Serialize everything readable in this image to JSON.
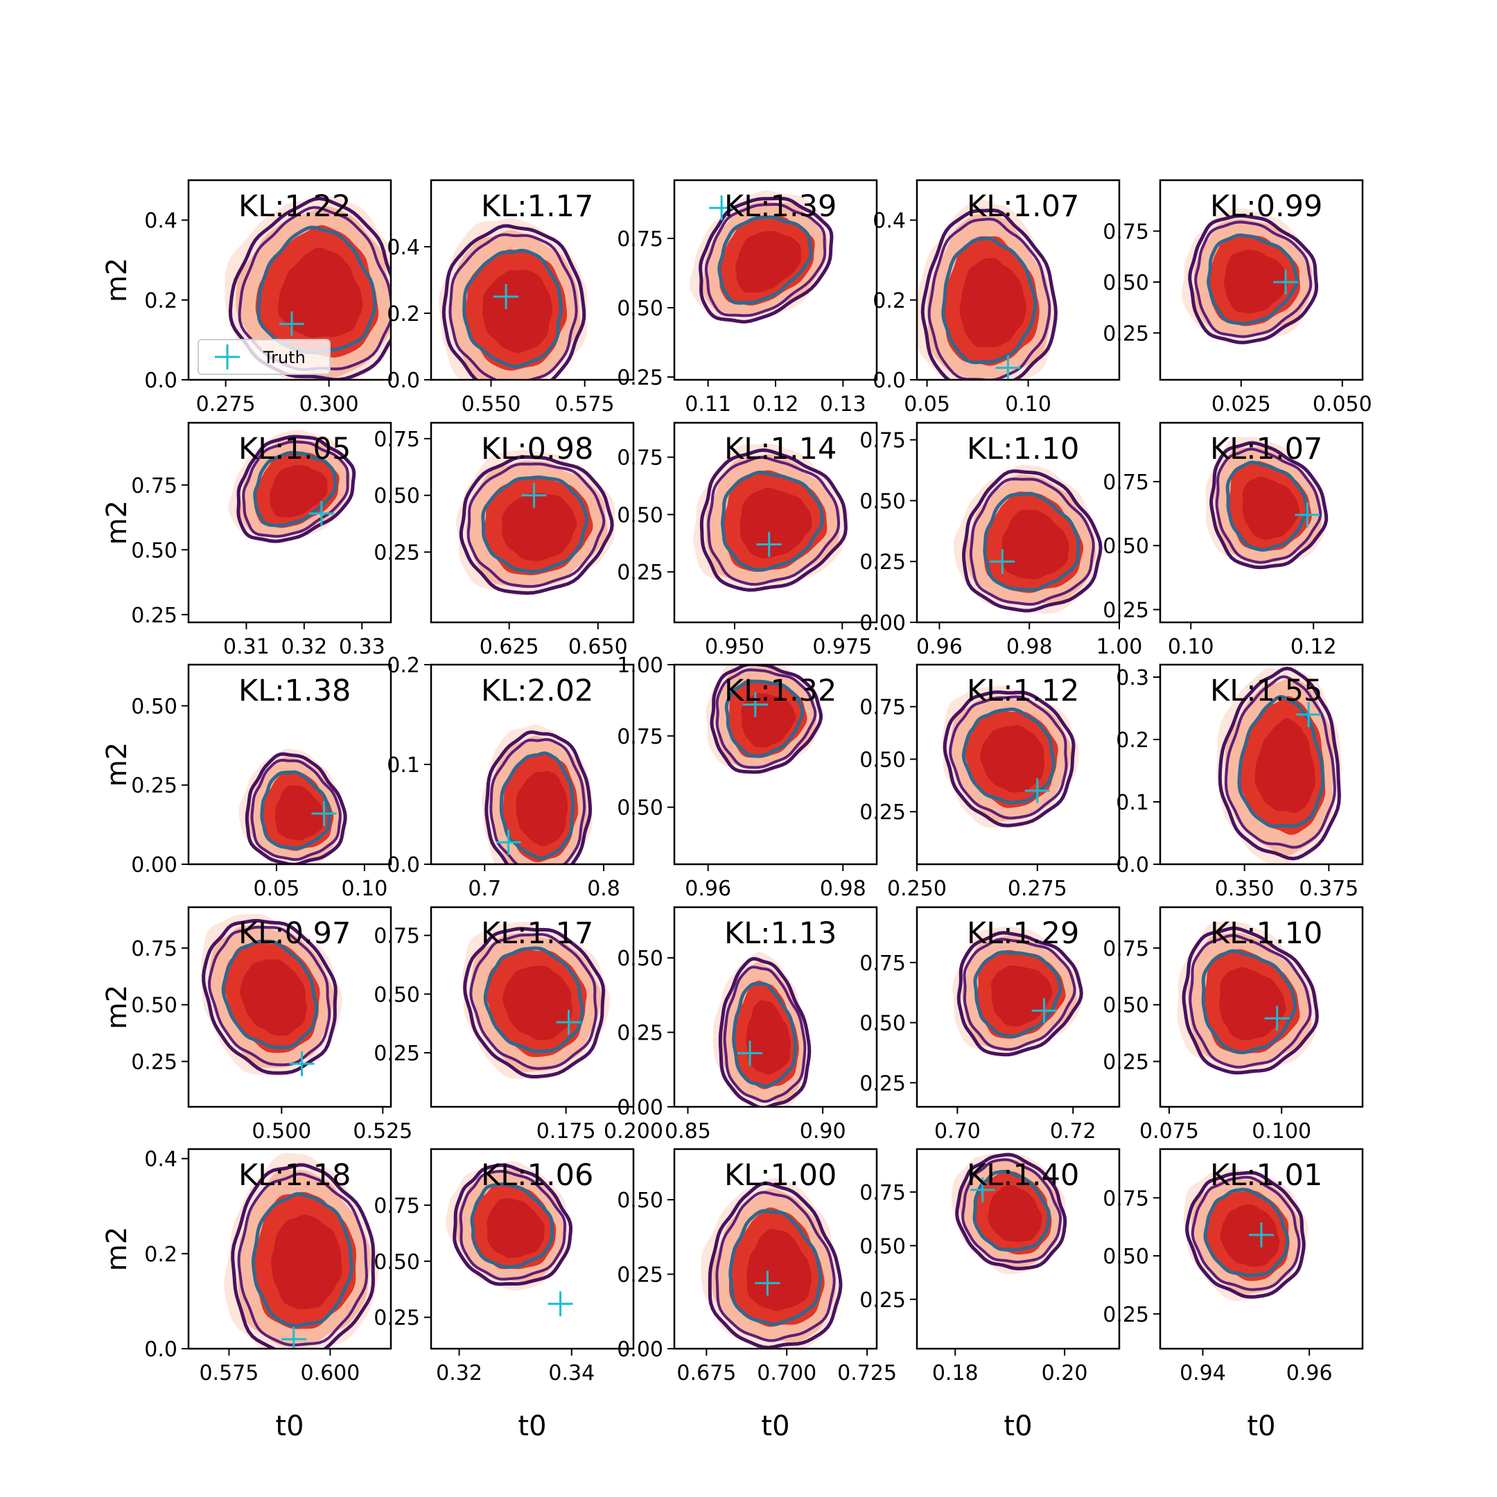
{
  "chart_data": {
    "type": "contour",
    "layout": {
      "rows": 5,
      "cols": 5
    },
    "xlabel": "t0",
    "ylabel": "m2",
    "legend": {
      "label": "Truth",
      "placement": "lower-left",
      "panel": 0
    },
    "colors": {
      "fill_outer": "#fde3d8",
      "fill_mid": "#f9b9a0",
      "fill_inner": "#e03428",
      "fill_core": "#c81b1e",
      "line_outer": "#48125f",
      "line_mid": "#5d1f78",
      "line_inner": "#31688e",
      "truth": "#17becf"
    },
    "panels": [
      {
        "kl": "KL:1.22",
        "xlim": [
          0.266,
          0.315
        ],
        "ylim": [
          0,
          0.5
        ],
        "xticks": [
          0.275,
          0.3
        ],
        "xticklabels": [
          "0.275",
          "0.300"
        ],
        "yticks": [
          0,
          0.2,
          0.4
        ],
        "yticklabels": [
          "0.0",
          "0.2",
          "0.4"
        ],
        "cx": 0.297,
        "cy": 0.22,
        "a": 0.016,
        "b": 0.18,
        "rot": 0,
        "truth": [
          0.291,
          0.14
        ]
      },
      {
        "kl": "KL:1.17",
        "xlim": [
          0.534,
          0.588
        ],
        "ylim": [
          0,
          0.6
        ],
        "xticks": [
          0.55,
          0.575
        ],
        "xticklabels": [
          "0.550",
          "0.575"
        ],
        "yticks": [
          0,
          0.2,
          0.4
        ],
        "yticklabels": [
          "0.0",
          "0.2",
          "0.4"
        ],
        "cx": 0.556,
        "cy": 0.22,
        "a": 0.015,
        "b": 0.2,
        "rot": 0,
        "truth": [
          0.554,
          0.25
        ]
      },
      {
        "kl": "KL:1.39",
        "xlim": [
          0.105,
          0.135
        ],
        "ylim": [
          0.24,
          0.96
        ],
        "xticks": [
          0.11,
          0.12,
          0.13
        ],
        "xticklabels": [
          "0.11",
          "0.12",
          "0.13"
        ],
        "yticks": [
          0.25,
          0.5,
          0.75
        ],
        "yticklabels": [
          "0.25",
          "0.50",
          "0.75"
        ],
        "cx": 0.118,
        "cy": 0.68,
        "a": 0.0085,
        "b": 0.16,
        "rot": -38,
        "truth": [
          0.112,
          0.86
        ]
      },
      {
        "kl": "KL:1.07",
        "xlim": [
          0.045,
          0.145
        ],
        "ylim": [
          0,
          0.5
        ],
        "xticks": [
          0.05,
          0.1
        ],
        "xticklabels": [
          "0.05",
          "0.10"
        ],
        "yticks": [
          0,
          0.2,
          0.4
        ],
        "yticklabels": [
          "0.0",
          "0.2",
          "0.4"
        ],
        "cx": 0.08,
        "cy": 0.2,
        "a": 0.026,
        "b": 0.18,
        "rot": 0,
        "truth": [
          0.09,
          0.03
        ]
      },
      {
        "kl": "KL:0.99",
        "xlim": [
          0.005,
          0.055
        ],
        "ylim": [
          0.02,
          1.0
        ],
        "xticks": [
          0.025,
          0.05
        ],
        "xticklabels": [
          "0.025",
          "0.050"
        ],
        "yticks": [
          0.25,
          0.5,
          0.75
        ],
        "yticklabels": [
          "0.25",
          "0.50",
          "0.75"
        ],
        "cx": 0.027,
        "cy": 0.52,
        "a": 0.0125,
        "b": 0.25,
        "rot": -35,
        "truth": [
          0.036,
          0.5
        ]
      },
      {
        "kl": "KL:1.05",
        "xlim": [
          0.3,
          0.335
        ],
        "ylim": [
          0.22,
          0.99
        ],
        "xticks": [
          0.31,
          0.32,
          0.33
        ],
        "xticklabels": [
          "0.31",
          "0.32",
          "0.33"
        ],
        "yticks": [
          0.25,
          0.5,
          0.75
        ],
        "yticklabels": [
          "0.25",
          "0.50",
          "0.75"
        ],
        "cx": 0.318,
        "cy": 0.74,
        "a": 0.0085,
        "b": 0.15,
        "rot": -32,
        "truth": [
          0.323,
          0.64
        ]
      },
      {
        "kl": "KL:0.98",
        "xlim": [
          0.603,
          0.66
        ],
        "ylim": [
          -0.06,
          0.82
        ],
        "xticks": [
          0.625,
          0.65
        ],
        "xticklabels": [
          "0.625",
          "0.650"
        ],
        "yticks": [
          0.25,
          0.5,
          0.75
        ],
        "yticklabels": [
          "0.25",
          "0.50",
          "0.75"
        ],
        "cx": 0.632,
        "cy": 0.38,
        "a": 0.017,
        "b": 0.24,
        "rot": -12,
        "truth": [
          0.632,
          0.5
        ]
      },
      {
        "kl": "KL:1.14",
        "xlim": [
          0.936,
          0.983
        ],
        "ylim": [
          0.03,
          0.9
        ],
        "xticks": [
          0.95,
          0.975
        ],
        "xticklabels": [
          "0.950",
          "0.975"
        ],
        "yticks": [
          0.25,
          0.5,
          0.75
        ],
        "yticklabels": [
          "0.25",
          "0.50",
          "0.75"
        ],
        "cx": 0.958,
        "cy": 0.48,
        "a": 0.0135,
        "b": 0.24,
        "rot": -22,
        "truth": [
          0.958,
          0.37
        ]
      },
      {
        "kl": "KL:1.10",
        "xlim": [
          0.955,
          1.0
        ],
        "ylim": [
          0,
          0.82
        ],
        "xticks": [
          0.96,
          0.98,
          1.0
        ],
        "xticklabels": [
          "0.96",
          "0.98",
          "1.00"
        ],
        "yticks": [
          0,
          0.25,
          0.5,
          0.75
        ],
        "yticklabels": [
          "0.00",
          "0.25",
          "0.50",
          "0.75"
        ],
        "cx": 0.98,
        "cy": 0.33,
        "a": 0.012,
        "b": 0.23,
        "rot": -15,
        "truth": [
          0.974,
          0.25
        ]
      },
      {
        "kl": "KL:1.07",
        "xlim": [
          0.095,
          0.128
        ],
        "ylim": [
          0.2,
          0.98
        ],
        "xticks": [
          0.1,
          0.12
        ],
        "xticklabels": [
          "0.10",
          "0.12"
        ],
        "yticks": [
          0.25,
          0.5,
          0.75
        ],
        "yticklabels": [
          "0.25",
          "0.50",
          "0.75"
        ],
        "cx": 0.112,
        "cy": 0.66,
        "a": 0.0072,
        "b": 0.2,
        "rot": -28,
        "truth": [
          0.119,
          0.62
        ]
      },
      {
        "kl": "KL:1.38",
        "xlim": [
          0.0,
          0.115
        ],
        "ylim": [
          0,
          0.63
        ],
        "xticks": [
          0.05,
          0.1
        ],
        "xticklabels": [
          "0.05",
          "0.10"
        ],
        "yticks": [
          0,
          0.25,
          0.5
        ],
        "yticklabels": [
          "0.00",
          "0.25",
          "0.50"
        ],
        "cx": 0.06,
        "cy": 0.17,
        "a": 0.022,
        "b": 0.14,
        "rot": -12,
        "truth": [
          0.077,
          0.16
        ]
      },
      {
        "kl": "KL:2.02",
        "xlim": [
          0.655,
          0.825
        ],
        "ylim": [
          0,
          0.2
        ],
        "xticks": [
          0.7,
          0.8
        ],
        "xticklabels": [
          "0.7",
          "0.8"
        ],
        "yticks": [
          0,
          0.1,
          0.2
        ],
        "yticklabels": [
          "0.0",
          "0.1",
          "0.2"
        ],
        "cx": 0.745,
        "cy": 0.06,
        "a": 0.035,
        "b": 0.06,
        "rot": 0,
        "truth": [
          0.72,
          0.022
        ]
      },
      {
        "kl": "KL:1.32",
        "xlim": [
          0.955,
          0.985
        ],
        "ylim": [
          0.3,
          1.0
        ],
        "xticks": [
          0.96,
          0.98
        ],
        "xticklabels": [
          "0.96",
          "0.98"
        ],
        "yticks": [
          0.5,
          0.75,
          1.0
        ],
        "yticklabels": [
          "0.50",
          "0.75",
          "1.00"
        ],
        "cx": 0.968,
        "cy": 0.82,
        "a": 0.0065,
        "b": 0.15,
        "rot": -38,
        "truth": [
          0.967,
          0.86
        ]
      },
      {
        "kl": "KL:1.12",
        "xlim": [
          0.25,
          0.292
        ],
        "ylim": [
          0,
          0.95
        ],
        "xticks": [
          0.25,
          0.275
        ],
        "xticklabels": [
          "0.250",
          "0.275"
        ],
        "yticks": [
          0.25,
          0.5,
          0.75
        ],
        "yticklabels": [
          "0.25",
          "0.50",
          "0.75"
        ],
        "cx": 0.269,
        "cy": 0.52,
        "a": 0.0105,
        "b": 0.26,
        "rot": -30,
        "truth": [
          0.275,
          0.35
        ]
      },
      {
        "kl": "KL:1.55",
        "xlim": [
          0.325,
          0.385
        ],
        "ylim": [
          0,
          0.32
        ],
        "xticks": [
          0.35,
          0.375
        ],
        "xticklabels": [
          "0.350",
          "0.375"
        ],
        "yticks": [
          0,
          0.1,
          0.2,
          0.3
        ],
        "yticklabels": [
          "0.0",
          "0.1",
          "0.2",
          "0.3"
        ],
        "cx": 0.361,
        "cy": 0.16,
        "a": 0.014,
        "b": 0.12,
        "rot": 0,
        "truth": [
          0.369,
          0.24
        ]
      },
      {
        "kl": "KL:0.97",
        "xlim": [
          0.477,
          0.527
        ],
        "ylim": [
          0.05,
          0.93
        ],
        "xticks": [
          0.5,
          0.525
        ],
        "xticklabels": [
          "0.500",
          "0.525"
        ],
        "yticks": [
          0.25,
          0.5,
          0.75
        ],
        "yticklabels": [
          "0.25",
          "0.50",
          "0.75"
        ],
        "cx": 0.497,
        "cy": 0.55,
        "a": 0.0125,
        "b": 0.28,
        "rot": -25,
        "truth": [
          0.505,
          0.24
        ]
      },
      {
        "kl": "KL:1.17",
        "xlim": [
          0.125,
          0.2
        ],
        "ylim": [
          0.02,
          0.87
        ],
        "xticks": [
          0.175,
          0.2
        ],
        "xticklabels": [
          "0.175",
          "0.200"
        ],
        "yticks": [
          0.25,
          0.5,
          0.75
        ],
        "yticklabels": [
          "0.25",
          "0.50",
          "0.75"
        ],
        "cx": 0.163,
        "cy": 0.48,
        "a": 0.02,
        "b": 0.26,
        "rot": -28,
        "truth": [
          0.176,
          0.38
        ]
      },
      {
        "kl": "KL:1.13",
        "xlim": [
          0.845,
          0.92
        ],
        "ylim": [
          0,
          0.67
        ],
        "xticks": [
          0.85,
          0.9
        ],
        "xticklabels": [
          "0.85",
          "0.90"
        ],
        "yticks": [
          0,
          0.25,
          0.5
        ],
        "yticklabels": [
          "0.00",
          "0.25",
          "0.50"
        ],
        "cx": 0.878,
        "cy": 0.24,
        "a": 0.013,
        "b": 0.2,
        "rot": -5,
        "truth": [
          0.873,
          0.18
        ]
      },
      {
        "kl": "KL:1.29",
        "xlim": [
          0.693,
          0.728
        ],
        "ylim": [
          0.15,
          0.98
        ],
        "xticks": [
          0.7,
          0.72
        ],
        "xticklabels": [
          "0.70",
          "0.72"
        ],
        "yticks": [
          0.25,
          0.5,
          0.75
        ],
        "yticklabels": [
          "0.25",
          "0.50",
          "0.75"
        ],
        "cx": 0.71,
        "cy": 0.63,
        "a": 0.0085,
        "b": 0.2,
        "rot": -32,
        "truth": [
          0.715,
          0.55
        ]
      },
      {
        "kl": "KL:1.10",
        "xlim": [
          0.073,
          0.118
        ],
        "ylim": [
          0.05,
          0.93
        ],
        "xticks": [
          0.075,
          0.1
        ],
        "xticklabels": [
          "0.075",
          "0.100"
        ],
        "yticks": [
          0.25,
          0.5,
          0.75
        ],
        "yticklabels": [
          "0.25",
          "0.50",
          "0.75"
        ],
        "cx": 0.092,
        "cy": 0.52,
        "a": 0.0115,
        "b": 0.26,
        "rot": -25,
        "truth": [
          0.099,
          0.44
        ]
      },
      {
        "kl": "KL:1.18",
        "xlim": [
          0.565,
          0.615
        ],
        "ylim": [
          0,
          0.42
        ],
        "xticks": [
          0.575,
          0.6
        ],
        "xticklabels": [
          "0.575",
          "0.600"
        ],
        "yticks": [
          0,
          0.2,
          0.4
        ],
        "yticklabels": [
          "0.0",
          "0.2",
          "0.4"
        ],
        "cx": 0.593,
        "cy": 0.19,
        "a": 0.014,
        "b": 0.16,
        "rot": 0,
        "truth": [
          0.591,
          0.02
        ]
      },
      {
        "kl": "KL:1.06",
        "xlim": [
          0.315,
          0.351
        ],
        "ylim": [
          0.11,
          1.0
        ],
        "xticks": [
          0.32,
          0.34
        ],
        "xticklabels": [
          "0.32",
          "0.34"
        ],
        "yticks": [
          0.25,
          0.5,
          0.75
        ],
        "yticklabels": [
          "0.25",
          "0.50",
          "0.75"
        ],
        "cx": 0.329,
        "cy": 0.66,
        "a": 0.008,
        "b": 0.22,
        "rot": -35,
        "truth": [
          0.338,
          0.31
        ]
      },
      {
        "kl": "KL:1.00",
        "xlim": [
          0.665,
          0.728
        ],
        "ylim": [
          0,
          0.67
        ],
        "xticks": [
          0.675,
          0.7,
          0.725
        ],
        "xticklabels": [
          "0.675",
          "0.700",
          "0.725"
        ],
        "yticks": [
          0,
          0.25,
          0.5
        ],
        "yticklabels": [
          "0.00",
          "0.25",
          "0.50"
        ],
        "cx": 0.696,
        "cy": 0.27,
        "a": 0.016,
        "b": 0.22,
        "rot": -5,
        "truth": [
          0.694,
          0.22
        ]
      },
      {
        "kl": "KL:1.40",
        "xlim": [
          0.173,
          0.21
        ],
        "ylim": [
          0.02,
          0.95
        ],
        "xticks": [
          0.18,
          0.2
        ],
        "xticklabels": [
          "0.18",
          "0.20"
        ],
        "yticks": [
          0.25,
          0.5,
          0.75
        ],
        "yticklabels": [
          "0.25",
          "0.50",
          "0.75"
        ],
        "cx": 0.19,
        "cy": 0.66,
        "a": 0.0075,
        "b": 0.22,
        "rot": -32,
        "truth": [
          0.185,
          0.76
        ]
      },
      {
        "kl": "KL:1.01",
        "xlim": [
          0.932,
          0.97
        ],
        "ylim": [
          0.1,
          0.96
        ],
        "xticks": [
          0.94,
          0.96
        ],
        "xticklabels": [
          "0.94",
          "0.96"
        ],
        "yticks": [
          0.25,
          0.5,
          0.75
        ],
        "yticklabels": [
          "0.25",
          "0.50",
          "0.75"
        ],
        "cx": 0.948,
        "cy": 0.6,
        "a": 0.0085,
        "b": 0.22,
        "rot": -30,
        "truth": [
          0.951,
          0.59
        ]
      }
    ]
  }
}
